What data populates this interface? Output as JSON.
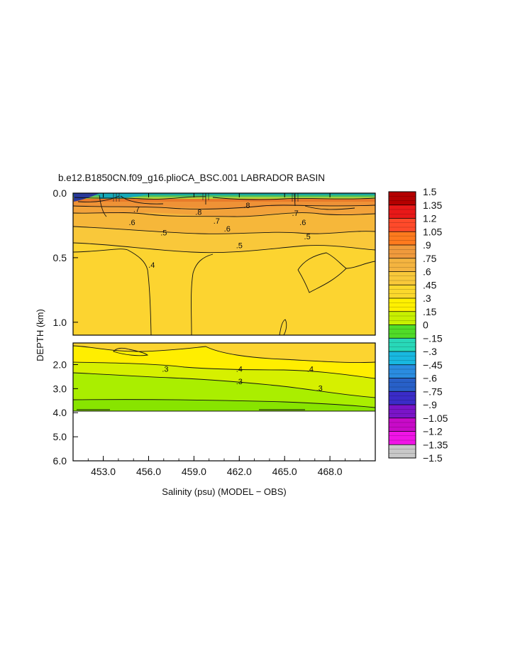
{
  "chart_data": {
    "type": "heatmap",
    "title": "b.e12.B1850CN.f09_g16.plioCA_BSC.001 LABRADOR BASIN",
    "xlabel": "Salinity (psu) (MODEL − OBS)",
    "ylabel": "DEPTH (km)",
    "xlim": [
      451.0,
      471.0
    ],
    "x_ticks": [
      "453.0",
      "456.0",
      "459.0",
      "462.0",
      "465.0",
      "468.0"
    ],
    "x_tick_values": [
      453.0,
      456.0,
      459.0,
      462.0,
      465.0,
      468.0
    ],
    "upper_panel": {
      "ylim": [
        0.0,
        1.1
      ],
      "y_ticks": [
        "0.0",
        "0.5",
        "1.0"
      ],
      "y_tick_values": [
        0.0,
        0.5,
        1.0
      ]
    },
    "lower_panel": {
      "ylim": [
        1.1,
        6.0
      ],
      "y_ticks": [
        "2.0",
        "3.0",
        "4.0",
        "5.0",
        "6.0"
      ],
      "y_tick_values": [
        2.0,
        3.0,
        4.0,
        5.0,
        6.0
      ],
      "data_bottom_depth": 3.9
    },
    "colorbar": {
      "labels": [
        "1.5",
        "1.35",
        "1.2",
        "1.05",
        ".9",
        ".75",
        ".6",
        ".45",
        ".3",
        ".15",
        "0",
        "−.15",
        "−.3",
        "−.45",
        "−.6",
        "−.75",
        "−.9",
        "−1.05",
        "−1.2",
        "−1.35",
        "−1.5"
      ],
      "values": [
        1.5,
        1.35,
        1.2,
        1.05,
        0.9,
        0.75,
        0.6,
        0.45,
        0.3,
        0.15,
        0,
        -0.15,
        -0.3,
        -0.45,
        -0.6,
        -0.75,
        -0.9,
        -1.05,
        -1.2,
        -1.35,
        -1.5
      ],
      "colors": [
        "#b40000",
        "#e81818",
        "#ff4a2a",
        "#ff7a1e",
        "#f09a3c",
        "#f4b440",
        "#f8c83a",
        "#fbd82c",
        "#fff000",
        "#c8f000",
        "#50dc28",
        "#28d8b8",
        "#18b8e0",
        "#2a8ce0",
        "#2860c8",
        "#3a2cc8",
        "#7a14c8",
        "#c80ac8",
        "#f014e6",
        "#c8c8c8",
        "#787878"
      ]
    },
    "contour_labels": {
      "upper": [
        {
          "text": ".8",
          "x": 459.3,
          "y": 0.15
        },
        {
          "text": ".8",
          "x": 462.5,
          "y": 0.1
        },
        {
          "text": ".7",
          "x": 455.2,
          "y": 0.13
        },
        {
          "text": ".7",
          "x": 460.5,
          "y": 0.22
        },
        {
          "text": ".7",
          "x": 465.7,
          "y": 0.16
        },
        {
          "text": ".6",
          "x": 454.9,
          "y": 0.23
        },
        {
          "text": ".6",
          "x": 461.2,
          "y": 0.28
        },
        {
          "text": ".6",
          "x": 466.2,
          "y": 0.23
        },
        {
          "text": ".5",
          "x": 457.0,
          "y": 0.31
        },
        {
          "text": ".5",
          "x": 462.0,
          "y": 0.41
        },
        {
          "text": ".5",
          "x": 466.5,
          "y": 0.34
        },
        {
          "text": ".4",
          "x": 456.2,
          "y": 0.56
        }
      ],
      "lower": [
        {
          "text": ".4",
          "x": 462.0,
          "y": 2.2
        },
        {
          "text": ".4",
          "x": 466.7,
          "y": 2.2
        },
        {
          "text": ".3",
          "x": 457.1,
          "y": 2.2
        },
        {
          "text": ".3",
          "x": 462.0,
          "y": 2.73
        },
        {
          "text": ".3",
          "x": 467.3,
          "y": 3.0
        }
      ]
    }
  }
}
